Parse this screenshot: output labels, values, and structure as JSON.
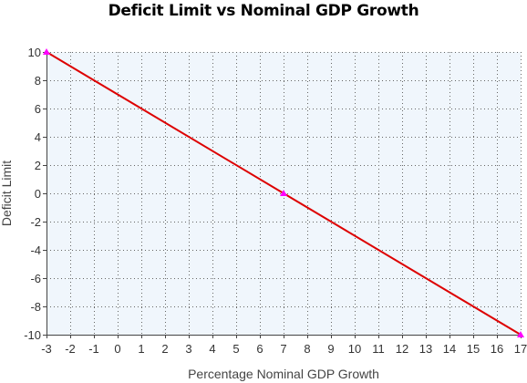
{
  "chart_data": {
    "type": "line",
    "title": "Deficit Limit vs Nominal GDP Growth",
    "xlabel": "Percentage Nominal GDP Growth",
    "ylabel": "Deficit Limit",
    "xlim": [
      -3,
      17
    ],
    "ylim": [
      -10,
      10
    ],
    "x_ticks": [
      -3,
      -2,
      -1,
      0,
      1,
      2,
      3,
      4,
      5,
      6,
      7,
      8,
      9,
      10,
      11,
      12,
      13,
      14,
      15,
      16,
      17
    ],
    "y_ticks": [
      10,
      8,
      6,
      4,
      2,
      0,
      -2,
      -4,
      -6,
      -8,
      -10
    ],
    "grid": true,
    "series": [
      {
        "x": [
          -3,
          7,
          17
        ],
        "y": [
          10,
          0,
          -10
        ],
        "color": "#dd0000",
        "marker_color": "#ff00ff"
      }
    ],
    "plot_background": "#f0f6fc"
  }
}
